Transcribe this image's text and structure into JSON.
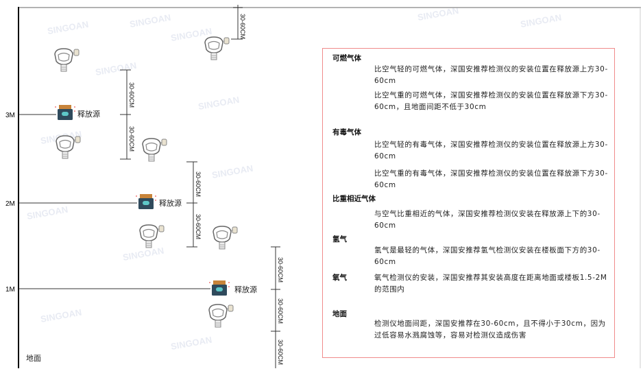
{
  "watermark": {
    "brand": "SINGOAN",
    "cn": "深国安"
  },
  "levels": {
    "m3": "3M",
    "m2": "2M",
    "m1": "1M",
    "ground": "地面"
  },
  "source_label": "释放源",
  "dimension_label": "30-60CM",
  "colors": {
    "panel_border": "#f08a8a",
    "source_body": "#2f4a5c",
    "source_cap": "#c8843a",
    "source_face": "#5ec8c8"
  },
  "panel": {
    "sections": [
      {
        "heading": "可燃气体",
        "paragraphs": [
          "比空气轻的可燃气体，深国安推荐检测仪的安装位置在释放源上方30-60cm",
          "比空气重的可燃气体，深国安推荐检测仪的安装位置在释放源下方30-60cm，且地面间距不低于30cm"
        ]
      },
      {
        "heading": "有毒气体",
        "paragraphs": [
          "比空气轻的有毒气体，深国安推荐检测仪的安装位置在释放源上方30-60cm",
          "比空气重的有毒气体，深国安推荐检测仪的安装位置在释放源下方30-60cm"
        ]
      },
      {
        "heading": "比重相近气体",
        "paragraphs": [
          "与空气比重相近的气体，深国安推荐检测仪安装在释放源上下的30-60cm"
        ]
      },
      {
        "heading": "氢气",
        "paragraphs": [
          "氢气是最轻的气体，深国安推荐氢气检测仪安装在楼板面下方的30-60cm"
        ]
      },
      {
        "heading": "氧气",
        "paragraphs": [
          "氧气检测仪的安装，深国安推荐其安装高度在距离地面或楼板1.5-2M的范围内"
        ]
      },
      {
        "heading": "地面",
        "paragraphs": [
          "检测仪地面间距，深国安推荐在30-60cm，且不得小于30cm，因为过低容易水溅腐蚀等，容易对检测仪造成伤害"
        ]
      }
    ]
  }
}
